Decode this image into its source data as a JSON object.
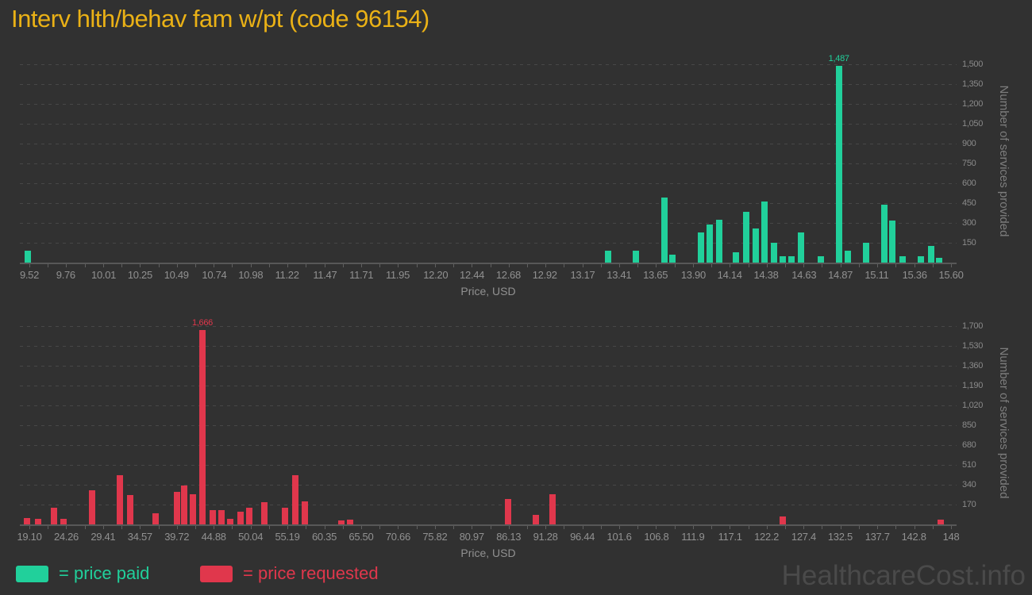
{
  "title": "Interv hlth/behav fam w/pt (code 96154)",
  "watermark": "HealthcareCost.info",
  "colors": {
    "background": "#313131",
    "paid_green": "#21d09b",
    "requested_red": "#e0374c",
    "title_gold": "#eab116",
    "axis_text": "#919191",
    "ytick_text": "#8a8a8a",
    "gridline": "#474747",
    "axis_line": "#585858",
    "watermark_text": "#4a4a4a"
  },
  "legend": {
    "paid_label": "= price paid",
    "requested_label": "= price requested"
  },
  "axis": {
    "xlabel": "Price, USD",
    "ylabel": "Number of services provided"
  },
  "chart_data": [
    {
      "type": "bar",
      "series_name": "price paid",
      "color": "#21d09b",
      "xlabel": "Price, USD",
      "ylabel": "Number of services provided",
      "legend_position": "bottom-left",
      "grid": true,
      "x_ticks": [
        "9.52",
        "9.76",
        "10.01",
        "10.25",
        "10.49",
        "10.74",
        "10.98",
        "11.22",
        "11.47",
        "11.71",
        "11.95",
        "12.20",
        "12.44",
        "12.68",
        "12.92",
        "13.17",
        "13.41",
        "13.65",
        "13.90",
        "14.14",
        "14.38",
        "14.63",
        "14.87",
        "15.11",
        "15.36",
        "15.60"
      ],
      "y_ticks": [
        "150",
        "300",
        "450",
        "600",
        "750",
        "900",
        "1,050",
        "1,200",
        "1,350",
        "1,500"
      ],
      "ylim": [
        0,
        1533
      ],
      "peak_annotation": {
        "x": 14.86,
        "label": "1,487",
        "value": 1487
      },
      "bars": [
        {
          "x": 9.51,
          "v": 90
        },
        {
          "x": 13.34,
          "v": 90
        },
        {
          "x": 13.52,
          "v": 90
        },
        {
          "x": 13.71,
          "v": 490
        },
        {
          "x": 13.76,
          "v": 60
        },
        {
          "x": 13.95,
          "v": 230
        },
        {
          "x": 14.01,
          "v": 290
        },
        {
          "x": 14.07,
          "v": 325
        },
        {
          "x": 14.18,
          "v": 80
        },
        {
          "x": 14.25,
          "v": 385
        },
        {
          "x": 14.31,
          "v": 260
        },
        {
          "x": 14.37,
          "v": 460
        },
        {
          "x": 14.43,
          "v": 150
        },
        {
          "x": 14.49,
          "v": 50
        },
        {
          "x": 14.55,
          "v": 50
        },
        {
          "x": 14.61,
          "v": 230
        },
        {
          "x": 14.74,
          "v": 50
        },
        {
          "x": 14.86,
          "v": 1487
        },
        {
          "x": 14.92,
          "v": 90
        },
        {
          "x": 15.04,
          "v": 150
        },
        {
          "x": 15.16,
          "v": 440
        },
        {
          "x": 15.21,
          "v": 315
        },
        {
          "x": 15.28,
          "v": 45
        },
        {
          "x": 15.4,
          "v": 50
        },
        {
          "x": 15.47,
          "v": 125
        },
        {
          "x": 15.52,
          "v": 35
        }
      ]
    },
    {
      "type": "bar",
      "series_name": "price requested",
      "color": "#e0374c",
      "xlabel": "Price, USD",
      "ylabel": "Number of services provided",
      "legend_position": "bottom-left",
      "grid": true,
      "x_ticks": [
        "19.10",
        "24.26",
        "29.41",
        "34.57",
        "39.72",
        "44.88",
        "50.04",
        "55.19",
        "60.35",
        "65.50",
        "70.66",
        "75.82",
        "80.97",
        "86.13",
        "91.28",
        "96.44",
        "101.6",
        "106.8",
        "111.9",
        "117.1",
        "122.2",
        "127.4",
        "132.5",
        "137.7",
        "142.8",
        "148"
      ],
      "y_ticks": [
        "170",
        "340",
        "510",
        "680",
        "850",
        "1,020",
        "1,190",
        "1,360",
        "1,530",
        "1,700"
      ],
      "ylim": [
        0,
        1740
      ],
      "peak_annotation": {
        "x": 43.3,
        "label": "1,666",
        "value": 1666
      },
      "bars": [
        {
          "x": 18.8,
          "v": 55
        },
        {
          "x": 20.3,
          "v": 50
        },
        {
          "x": 22.5,
          "v": 145
        },
        {
          "x": 23.9,
          "v": 50
        },
        {
          "x": 27.9,
          "v": 290
        },
        {
          "x": 31.8,
          "v": 420
        },
        {
          "x": 33.2,
          "v": 250
        },
        {
          "x": 36.8,
          "v": 95
        },
        {
          "x": 39.7,
          "v": 280
        },
        {
          "x": 40.8,
          "v": 335
        },
        {
          "x": 42.0,
          "v": 255
        },
        {
          "x": 43.3,
          "v": 1666
        },
        {
          "x": 44.7,
          "v": 125
        },
        {
          "x": 46.0,
          "v": 125
        },
        {
          "x": 47.2,
          "v": 45
        },
        {
          "x": 48.6,
          "v": 110
        },
        {
          "x": 49.9,
          "v": 145
        },
        {
          "x": 52.0,
          "v": 190
        },
        {
          "x": 54.9,
          "v": 140
        },
        {
          "x": 56.3,
          "v": 420
        },
        {
          "x": 57.6,
          "v": 200
        },
        {
          "x": 62.7,
          "v": 35
        },
        {
          "x": 64.0,
          "v": 40
        },
        {
          "x": 86.0,
          "v": 220
        },
        {
          "x": 89.9,
          "v": 80
        },
        {
          "x": 92.3,
          "v": 260
        },
        {
          "x": 124.5,
          "v": 70
        },
        {
          "x": 146.6,
          "v": 40
        }
      ]
    }
  ]
}
